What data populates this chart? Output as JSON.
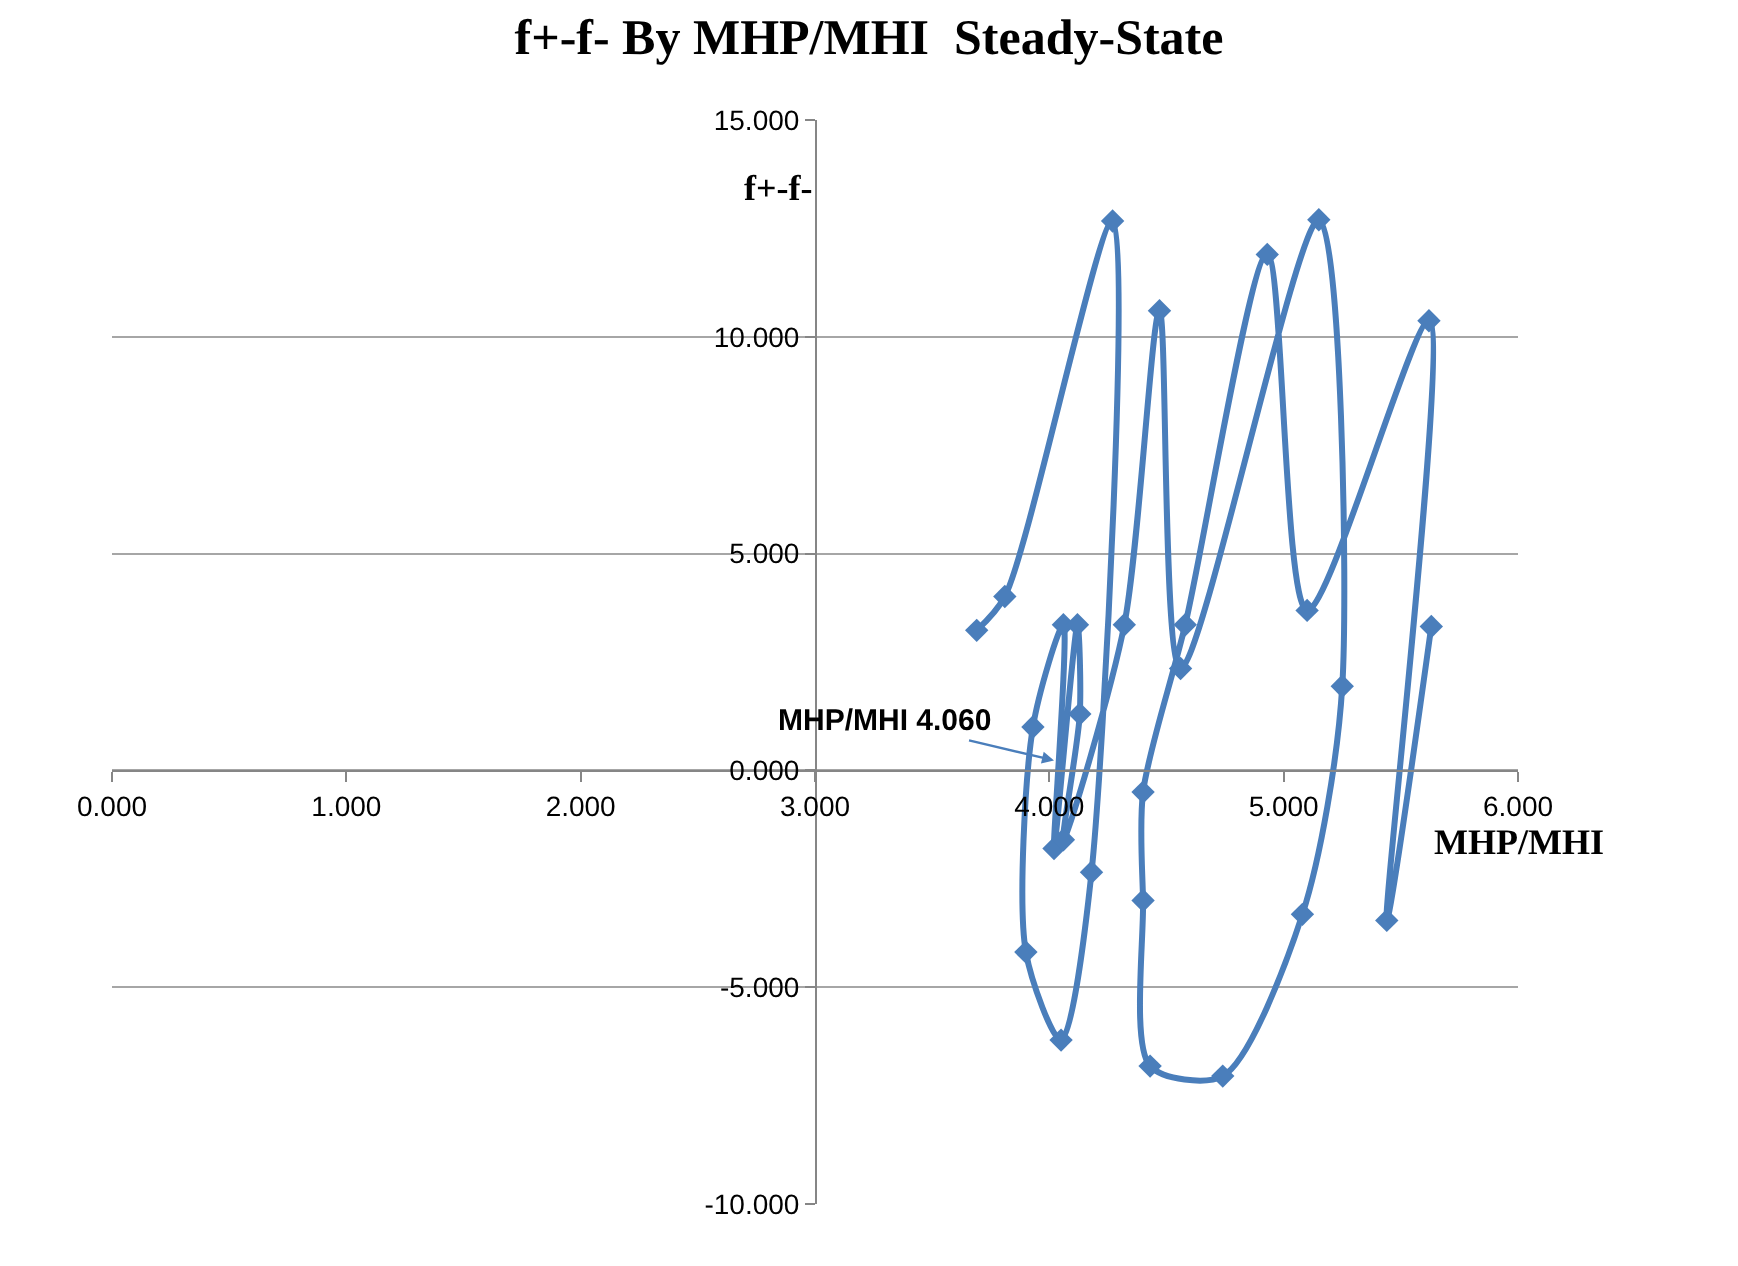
{
  "chart_data": {
    "type": "line",
    "title": "f+-f- By MHP/MHI  Steady-State",
    "xlabel": "MHP/MHI",
    "ylabel": "f+-f-",
    "series": [
      {
        "color": "#4a7ebb",
        "x": [
          3.69,
          3.81,
          4.27,
          4.18,
          4.05,
          3.9,
          3.93,
          4.06,
          4.02,
          4.12,
          4.13,
          4.06,
          4.32,
          4.47,
          4.56,
          5.15,
          5.25,
          5.08,
          4.74,
          4.43,
          4.4,
          4.4,
          4.58,
          4.93,
          5.1,
          5.62,
          5.44,
          5.63
        ],
        "values": [
          3.23,
          4.01,
          12.67,
          -2.35,
          -6.22,
          -4.19,
          1.0,
          3.36,
          -1.8,
          3.36,
          1.3,
          -1.6,
          3.36,
          10.6,
          2.35,
          12.7,
          1.94,
          -3.32,
          -7.05,
          -6.82,
          -3.0,
          -0.5,
          3.36,
          11.9,
          3.69,
          10.37,
          -3.46,
          3.32
        ]
      }
    ],
    "annotations": [
      {
        "text": "MHP/MHI 4.060",
        "x": 4.02,
        "y": 0.23
      }
    ],
    "xlim": [
      0,
      6
    ],
    "ylim": [
      -10,
      15
    ],
    "xticks": [
      {
        "value": 0,
        "label": "0.000"
      },
      {
        "value": 1,
        "label": "1.000"
      },
      {
        "value": 2,
        "label": "2.000"
      },
      {
        "value": 3,
        "label": "3.000"
      },
      {
        "value": 4,
        "label": "4.000"
      },
      {
        "value": 5,
        "label": "5.000"
      },
      {
        "value": 6,
        "label": "6.000"
      }
    ],
    "yticks": [
      {
        "value": -10,
        "label": "-10.000"
      },
      {
        "value": -5,
        "label": "-5.000"
      },
      {
        "value": 0,
        "label": "0.000"
      },
      {
        "value": 5,
        "label": "5.000"
      },
      {
        "value": 10,
        "label": "10.000"
      },
      {
        "value": 15,
        "label": "15.000"
      }
    ],
    "grid": "y",
    "marker": "diamond",
    "line_style": "solid"
  }
}
